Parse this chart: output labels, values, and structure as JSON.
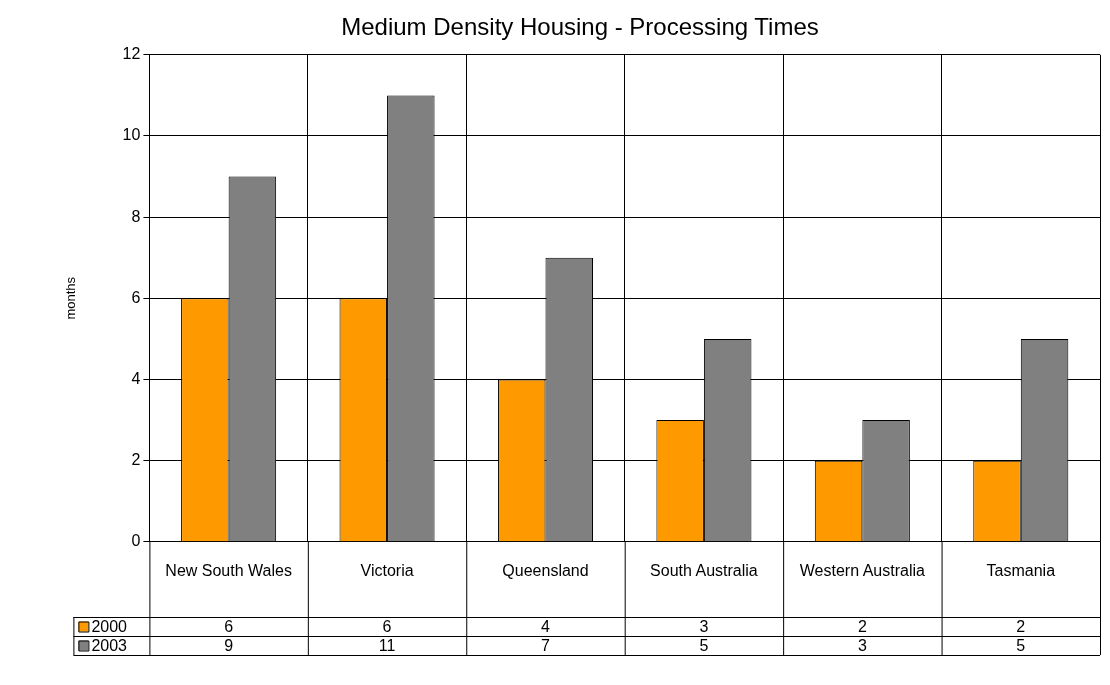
{
  "chart_data": {
    "type": "bar",
    "title": "Medium Density Housing - Processing Times",
    "ylabel": "months",
    "categories": [
      "New South Wales",
      "Victoria",
      "Queensland",
      "South Australia",
      "Western Australia",
      "Tasmania"
    ],
    "series": [
      {
        "name": "2000",
        "color": "#ff9900",
        "values": [
          6,
          6,
          4,
          3,
          2,
          2
        ]
      },
      {
        "name": "2003",
        "color": "#808080",
        "values": [
          9,
          11,
          7,
          5,
          3,
          5
        ]
      }
    ],
    "ylim": [
      0,
      12
    ],
    "yticks": [
      0,
      2,
      4,
      6,
      8,
      10,
      12
    ],
    "grid": true,
    "legend": "bottom left",
    "data_labels": true
  }
}
